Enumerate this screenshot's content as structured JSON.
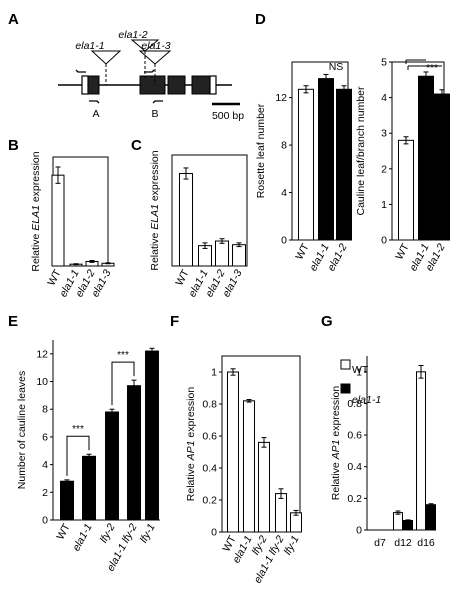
{
  "panel_labels": [
    "A",
    "B",
    "C",
    "D",
    "E",
    "F",
    "G"
  ],
  "gene_diagram": {
    "insertions": [
      "ela1-1",
      "ela1-2",
      "ela1-3"
    ],
    "probes": [
      "A",
      "B"
    ],
    "scale_label": "500 bp"
  },
  "chart_data": [
    {
      "id": "B",
      "type": "bar",
      "ylabel": "Relative ELA1 expression",
      "categories": [
        "WT",
        "ela1-1",
        "ela1-2",
        "ela1-3"
      ],
      "values": [
        1.0,
        0.02,
        0.05,
        0.03
      ],
      "errors": [
        0.09,
        0.005,
        0.01,
        0.005
      ],
      "fills": [
        "white",
        "white",
        "white",
        "white"
      ],
      "ylim": [
        0,
        1.2
      ],
      "yticks": [],
      "frame": "box",
      "grid": false
    },
    {
      "id": "C",
      "type": "bar",
      "ylabel": "Relative ELA1 expression",
      "categories": [
        "WT",
        "ela1-1",
        "ela1-2",
        "ela1-3"
      ],
      "values": [
        1.0,
        0.22,
        0.27,
        0.23
      ],
      "errors": [
        0.06,
        0.03,
        0.025,
        0.02
      ],
      "fills": [
        "white",
        "white",
        "white",
        "white"
      ],
      "ylim": [
        0,
        1.2
      ],
      "yticks": [],
      "frame": "box",
      "grid": false
    },
    {
      "id": "D-left",
      "type": "bar",
      "ylabel": "Rosette leaf number",
      "categories": [
        "WT",
        "ela1-1",
        "ela1-2"
      ],
      "values": [
        12.7,
        13.6,
        12.7
      ],
      "errors": [
        0.3,
        0.35,
        0.3
      ],
      "fills": [
        "white",
        "black",
        "black"
      ],
      "ylim": [
        0,
        15
      ],
      "yticks": [
        0,
        4,
        8,
        12
      ],
      "frame": "box",
      "grid": false,
      "annotation": "NS"
    },
    {
      "id": "D-right",
      "type": "bar",
      "ylabel": "Cauline leaf/branch number",
      "categories": [
        "WT",
        "ela1-1",
        "ela1-2"
      ],
      "values": [
        2.8,
        4.6,
        4.1
      ],
      "errors": [
        0.1,
        0.12,
        0.12
      ],
      "fills": [
        "white",
        "black",
        "black"
      ],
      "ylim": [
        0,
        5
      ],
      "yticks": [
        0,
        1,
        2,
        3,
        4,
        5
      ],
      "frame": "box",
      "grid": false,
      "annotation": "***"
    },
    {
      "id": "E",
      "type": "bar",
      "ylabel": "Number of cauline leaves",
      "categories": [
        "WT",
        "ela1-1",
        "lfy-2",
        "ela1-1 lfy-2",
        "lfy-1"
      ],
      "values": [
        2.8,
        4.6,
        7.8,
        9.7,
        12.2
      ],
      "errors": [
        0.1,
        0.15,
        0.2,
        0.4,
        0.2
      ],
      "fills": [
        "black",
        "black",
        "black",
        "black",
        "black"
      ],
      "ylim": [
        0,
        13
      ],
      "yticks": [
        0,
        2,
        4,
        6,
        8,
        10,
        12
      ],
      "frame": "L",
      "grid": false,
      "significance": [
        "***",
        "***"
      ]
    },
    {
      "id": "F",
      "type": "bar",
      "ylabel": "Relative AP1 expression",
      "categories": [
        "WT",
        "ela1-1",
        "lfy-2",
        "ela1-1 lfy-2",
        "lfy-1"
      ],
      "values": [
        1.0,
        0.82,
        0.56,
        0.24,
        0.12
      ],
      "errors": [
        0.02,
        0.008,
        0.03,
        0.03,
        0.015
      ],
      "fills": [
        "white",
        "white",
        "white",
        "white",
        "white"
      ],
      "ylim": [
        0,
        1.1
      ],
      "yticks": [
        0,
        0.2,
        0.4,
        0.6,
        0.8,
        1
      ],
      "frame": "box",
      "grid": false
    },
    {
      "id": "G",
      "type": "bar",
      "ylabel": "Relative AP1 expression",
      "categories": [
        "d7",
        "d12",
        "d16"
      ],
      "series": [
        {
          "name": "WT",
          "fill": "white",
          "values": [
            0.0,
            0.11,
            1.0
          ],
          "errors": [
            0.0,
            0.01,
            0.04
          ]
        },
        {
          "name": "ela1-1",
          "fill": "black",
          "values": [
            0.0,
            0.06,
            0.16
          ],
          "errors": [
            0.0,
            0.004,
            0.006
          ]
        }
      ],
      "ylim": [
        0,
        1.1
      ],
      "yticks": [
        0,
        0.2,
        0.4,
        0.6,
        0.8,
        1
      ],
      "frame": "L",
      "grid": false,
      "legend_position": "top-left"
    }
  ]
}
